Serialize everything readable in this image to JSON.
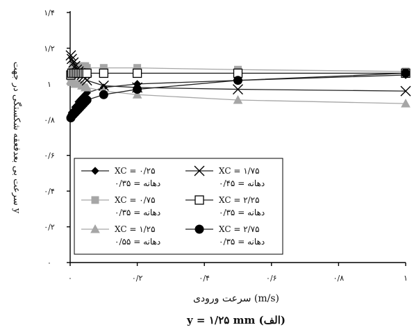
{
  "chart_data": {
    "type": "line",
    "title": "y = ۱/۲۵ mm (الف)",
    "xlabel": "سرعت ورودی (m/s)",
    "ylabel": "سرعت بی بعدفعقه شکستگی در جهت y",
    "xlim": [
      0,
      1
    ],
    "ylim": [
      0,
      1.4
    ],
    "xticks": [
      0,
      0.2,
      0.4,
      0.6,
      0.8,
      1
    ],
    "xtick_labels": [
      "۰",
      "۰/۲",
      "۰/۴",
      "۰/۶",
      "۰/۸",
      "۱"
    ],
    "yticks": [
      0,
      0.2,
      0.4,
      0.6,
      0.8,
      1,
      1.2,
      1.4
    ],
    "ytick_labels": [
      "۰",
      "۰/۲",
      "۰/۴",
      "۰/۶",
      "۰/۸",
      "۱",
      "۱/۲",
      "۱/۴"
    ],
    "grid": false,
    "legend_position": "lower-left",
    "series": [
      {
        "name": "XC = ۰/۲۵",
        "name_line2": "۰/۳۵ = دهانه",
        "marker": "diamond",
        "color": "#000000",
        "x": [
          0.002,
          0.005,
          0.01,
          0.015,
          0.02,
          0.025,
          0.03,
          0.035,
          0.04,
          0.045,
          0.05,
          0.1,
          0.2,
          0.5,
          1.0
        ],
        "y": [
          0.82,
          0.84,
          0.85,
          0.87,
          0.88,
          0.9,
          0.91,
          0.92,
          0.93,
          0.94,
          0.95,
          0.98,
          1.0,
          1.02,
          1.05
        ]
      },
      {
        "name": "XC = ۰/۷۵",
        "name_line2": "۰/۳۵ = دهانه",
        "marker": "square",
        "color": "#a6a6a6",
        "x": [
          0.002,
          0.005,
          0.01,
          0.015,
          0.02,
          0.025,
          0.03,
          0.035,
          0.04,
          0.045,
          0.05,
          0.1,
          0.2,
          0.5,
          1.0
        ],
        "y": [
          1.04,
          1.07,
          1.1,
          1.1,
          1.1,
          1.1,
          1.1,
          1.1,
          1.1,
          1.1,
          1.09,
          1.09,
          1.09,
          1.08,
          1.07
        ]
      },
      {
        "name": "XC = ۱/۲۵",
        "name_line2": "۰/۵۵ = دهانه",
        "marker": "triangle",
        "color": "#a6a6a6",
        "x": [
          0.002,
          0.005,
          0.01,
          0.015,
          0.02,
          0.025,
          0.03,
          0.035,
          0.04,
          0.045,
          0.05,
          0.1,
          0.2,
          0.5,
          1.0
        ],
        "y": [
          1.02,
          1.01,
          1.01,
          1.0,
          1.0,
          1.0,
          1.0,
          0.99,
          0.99,
          0.98,
          0.98,
          0.96,
          0.94,
          0.91,
          0.89
        ]
      },
      {
        "name": "XC = ۱/۷۵",
        "name_line2": "۰/۴۵ = دهانه",
        "marker": "x",
        "color": "#000000",
        "x": [
          0.002,
          0.005,
          0.01,
          0.015,
          0.02,
          0.025,
          0.03,
          0.035,
          0.04,
          0.045,
          0.05,
          0.1,
          0.2,
          0.5,
          1.0
        ],
        "y": [
          1.16,
          1.14,
          1.12,
          1.1,
          1.08,
          1.07,
          1.06,
          1.05,
          1.04,
          1.03,
          1.02,
          0.99,
          0.98,
          0.97,
          0.96
        ]
      },
      {
        "name": "XC = ۲/۲۵",
        "name_line2": "۰/۳۵ = دهانه",
        "marker": "open-square",
        "color": "#000000",
        "x": [
          0.002,
          0.005,
          0.01,
          0.015,
          0.02,
          0.025,
          0.03,
          0.035,
          0.04,
          0.045,
          0.05,
          0.1,
          0.2,
          0.5,
          1.0
        ],
        "y": [
          1.05,
          1.06,
          1.06,
          1.06,
          1.06,
          1.06,
          1.06,
          1.06,
          1.06,
          1.06,
          1.06,
          1.06,
          1.06,
          1.06,
          1.06
        ]
      },
      {
        "name": "XC = ۲/۷۵",
        "name_line2": "۰/۳۵ = دهانه",
        "marker": "circle",
        "color": "#000000",
        "x": [
          0.002,
          0.005,
          0.01,
          0.015,
          0.02,
          0.025,
          0.03,
          0.035,
          0.04,
          0.045,
          0.05,
          0.1,
          0.2,
          0.5,
          1.0
        ],
        "y": [
          0.81,
          0.82,
          0.83,
          0.84,
          0.85,
          0.86,
          0.87,
          0.88,
          0.89,
          0.9,
          0.91,
          0.94,
          0.97,
          1.02,
          1.06
        ]
      }
    ]
  }
}
